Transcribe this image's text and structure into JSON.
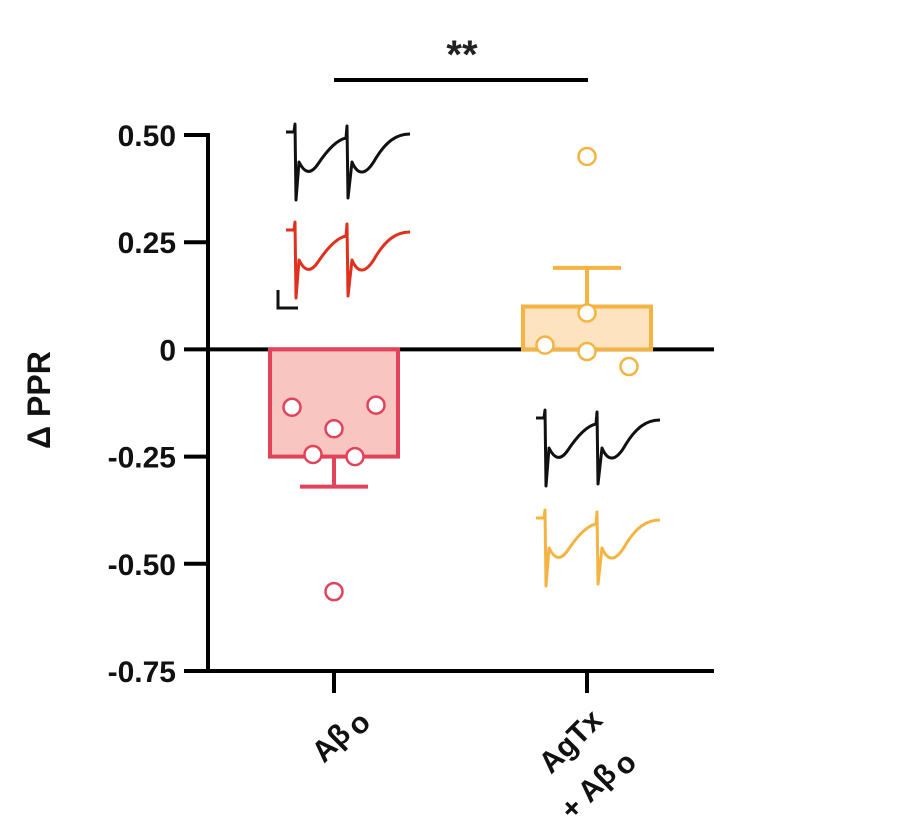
{
  "chart_data": {
    "type": "bar",
    "ylabel": "Δ PPR",
    "ylim": [
      -0.75,
      0.5
    ],
    "yticks": [
      "0.50",
      "0.25",
      "0",
      "-0.25",
      "-0.50",
      "-0.75"
    ],
    "ytick_values": [
      0.5,
      0.25,
      0,
      -0.25,
      -0.5,
      -0.75
    ],
    "categories": [
      "Aβₒ",
      "AgTx\n+ Aβₒ"
    ],
    "category_lines": [
      [
        "Aβ",
        "ₒ"
      ],
      [
        "AgTx",
        "+ Aβ",
        "ₒ"
      ]
    ],
    "values": [
      -0.25,
      0.1
    ],
    "sem": [
      0.07,
      0.09
    ],
    "points": [
      [
        -0.135,
        -0.185,
        -0.245,
        -0.25,
        -0.13,
        -0.565
      ],
      [
        0.01,
        0.085,
        -0.005,
        -0.04,
        0.45
      ]
    ],
    "significance": "**",
    "colors": {
      "group1_edge": "#e2435a",
      "group1_fill": "#f9c5c0",
      "group2_edge": "#f4b442",
      "group2_fill": "#fde3bf",
      "axis": "#000000",
      "trace_black": "#111111",
      "trace_red": "#e0301e",
      "trace_orange": "#f4b442"
    },
    "grid": false,
    "legend": "none"
  }
}
